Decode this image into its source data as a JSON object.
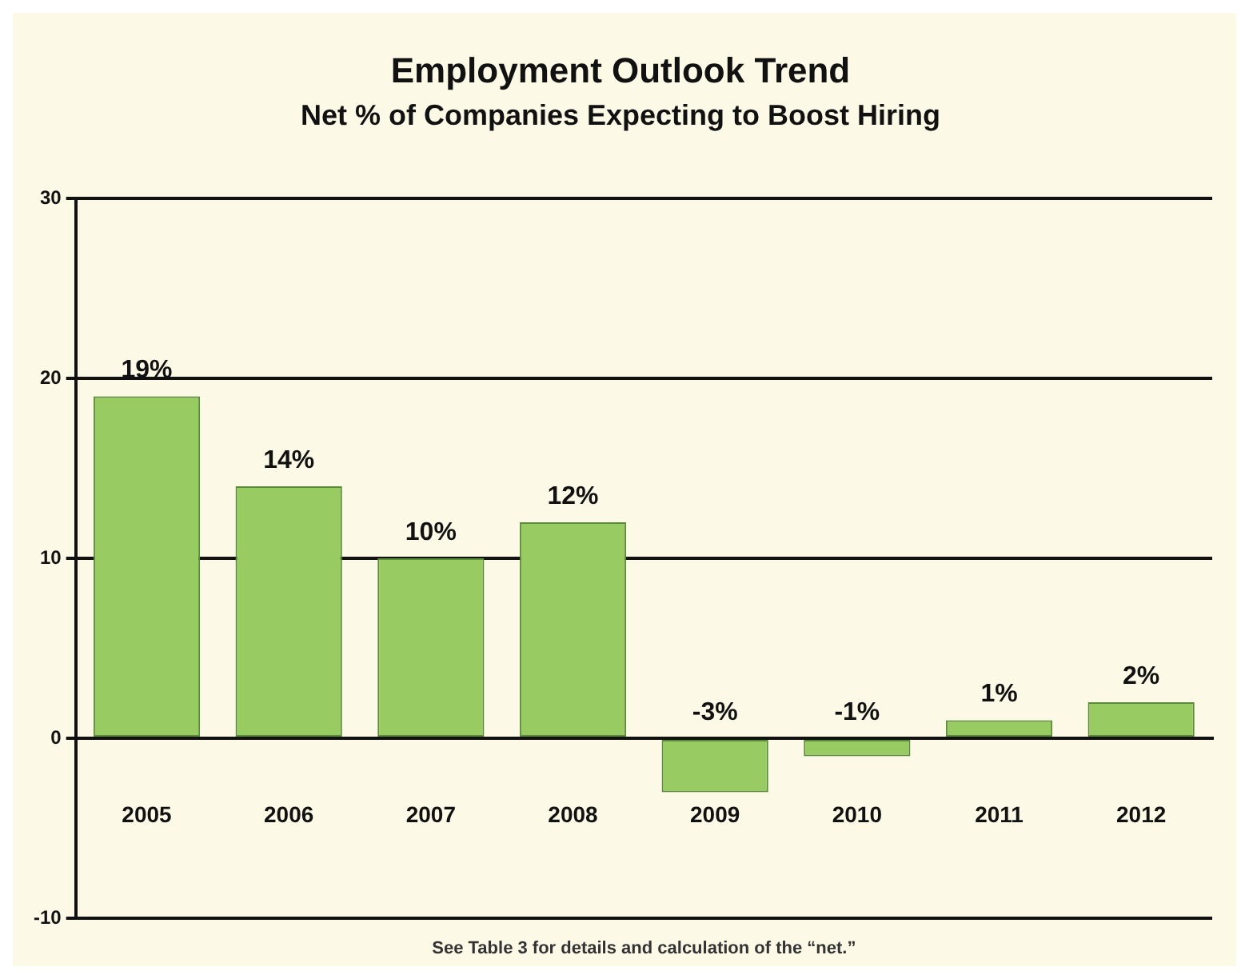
{
  "chart_data": {
    "type": "bar",
    "title": "Employment Outlook Trend",
    "subtitle": "Net % of Companies Expecting to Boost Hiring",
    "categories": [
      "2005",
      "2006",
      "2007",
      "2008",
      "2009",
      "2010",
      "2011",
      "2012"
    ],
    "values": [
      19,
      14,
      10,
      12,
      -3,
      -1,
      1,
      2
    ],
    "value_labels": [
      "19%",
      "14%",
      "10%",
      "12%",
      "-3%",
      "-1%",
      "1%",
      "2%"
    ],
    "color": "#98cc63",
    "ylim": [
      -10,
      30
    ],
    "yticks": [
      -10,
      0,
      10,
      20,
      30
    ],
    "grid": "y",
    "legend": false,
    "annotations": [
      "See Table 3 for details and calculation of the “net.”"
    ]
  }
}
